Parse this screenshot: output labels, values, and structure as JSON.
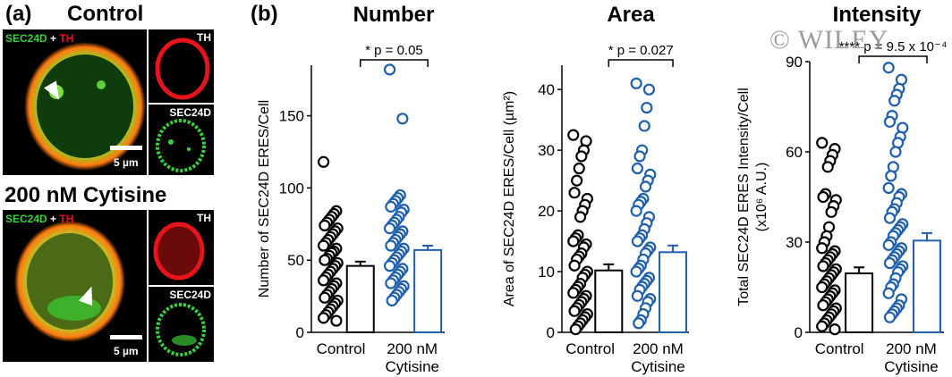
{
  "panel_a": {
    "label": "(a)",
    "conditions": [
      {
        "title": "Control",
        "overlay_label_green": "SEC24D",
        "overlay_label_plus": " + ",
        "overlay_label_red": "TH",
        "scale_text": "5 µm",
        "channel_red": "TH",
        "channel_green": "SEC24D"
      },
      {
        "title": "200 nM Cytisine",
        "overlay_label_green": "SEC24D",
        "overlay_label_plus": " + ",
        "overlay_label_red": "TH",
        "scale_text": "5 µm",
        "channel_red": "TH",
        "channel_green": "SEC24D"
      }
    ]
  },
  "panel_b": {
    "label": "(b)"
  },
  "watermark": "© WILEY",
  "colors": {
    "control": "#000000",
    "cytisine": "#1f5fad",
    "red_channel": "#e8141c",
    "green_channel": "#35d43a"
  },
  "chart_data": [
    {
      "type": "scatter",
      "title": "Number",
      "ylabel": "Number of SEC24D ERES/Cell",
      "ylim": [
        0,
        185
      ],
      "yticks": [
        0,
        50,
        100,
        150
      ],
      "categories": [
        "Control",
        "200 nM\nCytisine"
      ],
      "significance": "* p = 0.05",
      "series": [
        {
          "name": "Control",
          "points": [
            118,
            84,
            82,
            80,
            78,
            76,
            74,
            72,
            70,
            68,
            66,
            64,
            62,
            60,
            58,
            56,
            55,
            53,
            51,
            50,
            48,
            46,
            44,
            42,
            40,
            38,
            36,
            34,
            32,
            30,
            28,
            26,
            24,
            22,
            20,
            18,
            16,
            14,
            12,
            10,
            8
          ],
          "mean": 46,
          "sem": 3
        },
        {
          "name": "200 nM Cytisine",
          "points": [
            182,
            148,
            95,
            93,
            91,
            89,
            87,
            85,
            83,
            80,
            78,
            76,
            74,
            72,
            70,
            68,
            66,
            64,
            62,
            60,
            58,
            56,
            54,
            52,
            50,
            48,
            46,
            44,
            42,
            40,
            38,
            36,
            34,
            32,
            30,
            28,
            26,
            24,
            22
          ],
          "mean": 57,
          "sem": 3
        }
      ]
    },
    {
      "type": "scatter",
      "title": "Area",
      "ylabel": "Area of SEC24D ERES/Cell (µm²)",
      "ylim": [
        0,
        44
      ],
      "yticks": [
        0,
        10,
        20,
        30,
        40
      ],
      "categories": [
        "Control",
        "200 nM\nCytisine"
      ],
      "significance": "* p = 0.027",
      "series": [
        {
          "name": "Control",
          "points": [
            32.5,
            31.5,
            30,
            29,
            27,
            25,
            23,
            22,
            21,
            20,
            19,
            16,
            15.5,
            15,
            14.5,
            14,
            13,
            12.5,
            12,
            11,
            10,
            9.5,
            9,
            8,
            7.5,
            7,
            6.5,
            6,
            5.5,
            5,
            4.5,
            4,
            3.5,
            3,
            2.5,
            2,
            1.5,
            1,
            0.5
          ],
          "mean": 10.2,
          "sem": 1
        },
        {
          "name": "200 nM Cytisine",
          "points": [
            41,
            40,
            37,
            34,
            30,
            29,
            27,
            26,
            25,
            24,
            22,
            21.5,
            21,
            20,
            19,
            18,
            17,
            16,
            15.5,
            15,
            14,
            13.5,
            13,
            12,
            11,
            10.5,
            10,
            9,
            8.5,
            8,
            7.5,
            7,
            6,
            5.5,
            5,
            4,
            3,
            2,
            1.5
          ],
          "mean": 13.2,
          "sem": 1.1
        }
      ]
    },
    {
      "type": "scatter",
      "title": "Intensity",
      "ylabel": "Total SEC24D ERES Intensity/Cell",
      "ylabel2": "(x10⁶ A.U.)",
      "ylim": [
        0,
        90
      ],
      "yticks": [
        0,
        30,
        60,
        90
      ],
      "categories": [
        "Control",
        "200 nM\nCytisine"
      ],
      "significance": "**** p = 9.5 x 10⁻⁴",
      "series": [
        {
          "name": "Control",
          "points": [
            63,
            61,
            59,
            57,
            55,
            46,
            45,
            44,
            42,
            40,
            35,
            32,
            30,
            28,
            27,
            26,
            25,
            24,
            23,
            22,
            21,
            20,
            19,
            18,
            17,
            16,
            15,
            14,
            13,
            12,
            11,
            10,
            9,
            8,
            7,
            6,
            5,
            4,
            3,
            2,
            1
          ],
          "mean": 19.6,
          "sem": 2
        },
        {
          "name": "200 nM Cytisine",
          "points": [
            88,
            84,
            81,
            79,
            77,
            72,
            70,
            68,
            65,
            63,
            60,
            55,
            52,
            48,
            46,
            45,
            43,
            41,
            40,
            38,
            36,
            35,
            34,
            33,
            32,
            30,
            29,
            28,
            27,
            26,
            25,
            24,
            23,
            22,
            21,
            20,
            18,
            16,
            15,
            13,
            11,
            9,
            8,
            7,
            6,
            5
          ],
          "mean": 30.5,
          "sem": 2.5
        }
      ]
    }
  ]
}
